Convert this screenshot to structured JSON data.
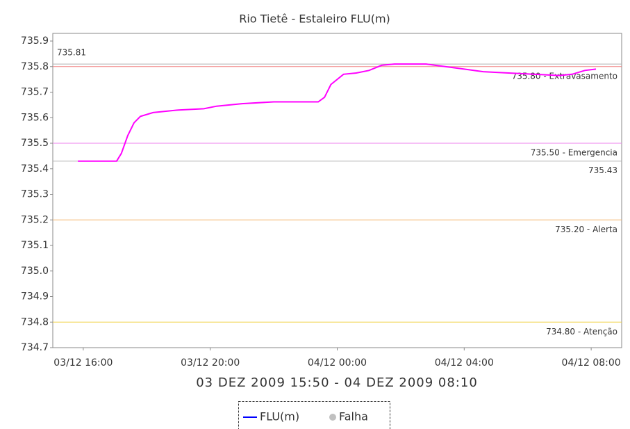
{
  "chart_data": {
    "type": "line",
    "title": "Rio Tietê - Estaleiro FLU(m)",
    "subtitle": "03 DEZ 2009 15:50 - 04 DEZ 2009 08:10",
    "xlim": [
      15.04,
      32.96
    ],
    "xticks": [
      {
        "value": 16,
        "label": "03/12 16:00"
      },
      {
        "value": 20,
        "label": "03/12 20:00"
      },
      {
        "value": 24,
        "label": "04/12 00:00"
      },
      {
        "value": 28,
        "label": "04/12 04:00"
      },
      {
        "value": 32,
        "label": "04/12 08:00"
      }
    ],
    "ylim": [
      734.7,
      735.93
    ],
    "yticks": [
      {
        "value": 734.7,
        "label": "734.7"
      },
      {
        "value": 734.8,
        "label": "734.8"
      },
      {
        "value": 734.9,
        "label": "734.9"
      },
      {
        "value": 735.0,
        "label": "735.0"
      },
      {
        "value": 735.1,
        "label": "735.1"
      },
      {
        "value": 735.2,
        "label": "735.2"
      },
      {
        "value": 735.3,
        "label": "735.3"
      },
      {
        "value": 735.4,
        "label": "735.4"
      },
      {
        "value": 735.5,
        "label": "735.5"
      },
      {
        "value": 735.6,
        "label": "735.6"
      },
      {
        "value": 735.7,
        "label": "735.7"
      },
      {
        "value": 735.8,
        "label": "735.8"
      },
      {
        "value": 735.9,
        "label": "735.9"
      }
    ],
    "x": [
      15.83,
      17.05,
      17.2,
      17.4,
      17.6,
      17.8,
      18.2,
      19.0,
      19.8,
      20.2,
      21.0,
      22.0,
      23.4,
      23.6,
      23.8,
      24.2,
      24.6,
      25.0,
      25.4,
      25.8,
      26.8,
      27.4,
      28.0,
      28.6,
      29.4,
      30.2,
      31.0,
      31.4,
      31.8,
      32.15
    ],
    "series": [
      {
        "name": "FLU(m)",
        "color": "#ff00ff",
        "legend_color": "#0000ff",
        "values": [
          735.43,
          735.43,
          735.46,
          735.53,
          735.58,
          735.605,
          735.62,
          735.63,
          735.635,
          735.645,
          735.655,
          735.662,
          735.662,
          735.68,
          735.73,
          735.77,
          735.775,
          735.785,
          735.805,
          735.81,
          735.81,
          735.8,
          735.79,
          735.78,
          735.775,
          735.77,
          735.765,
          735.77,
          735.785,
          735.79
        ]
      }
    ],
    "legend_extra": {
      "name": "Falha",
      "color": "#c0c0c0"
    },
    "ref_lines": [
      {
        "value": 735.81,
        "color": "#b0b0b0"
      },
      {
        "value": 735.8,
        "label": "735.80 - Extravasamento",
        "color": "#f08080"
      },
      {
        "value": 735.5,
        "label": "735.50 - Emergencia",
        "color": "#ee82ee"
      },
      {
        "value": 735.43,
        "color": "#b0b0b0"
      },
      {
        "value": 735.2,
        "label": "735.20 - Alerta",
        "color": "#f4b26a"
      },
      {
        "value": 734.8,
        "label": "734.80 - Atenção",
        "color": "#f0d040"
      }
    ]
  }
}
